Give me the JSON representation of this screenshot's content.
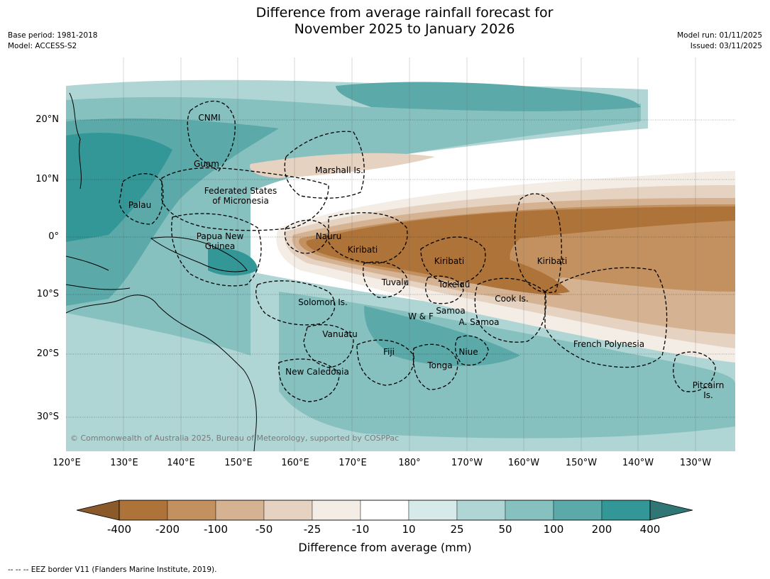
{
  "title": {
    "line1": "Difference from average rainfall forecast for",
    "line2": "November 2025 to January 2026"
  },
  "meta_left": {
    "base_period": "Base period: 1981-2018",
    "model": "Model: ACCESS-S2"
  },
  "meta_right": {
    "model_run": "Model run: 01/11/2025",
    "issued": "Issued: 03/11/2025"
  },
  "axes": {
    "lat_labels": [
      "20°N",
      "10°N",
      "0°",
      "10°S",
      "20°S",
      "30°S"
    ],
    "lon_labels": [
      "120°E",
      "130°E",
      "140°E",
      "150°E",
      "160°E",
      "170°E",
      "180°",
      "170°W",
      "160°W",
      "150°W",
      "140°W",
      "130°W"
    ]
  },
  "regions": {
    "cnmi": "CNMI",
    "guam": "Guam",
    "marshall": "Marshall Is.",
    "fsm1": "Federated States",
    "fsm2": "of Micronesia",
    "palau": "Palau",
    "png1": "Papua New",
    "png2": "Guinea",
    "nauru": "Nauru",
    "kiribati_w": "Kiribati",
    "kiribati_c": "Kiribati",
    "kiribati_e": "Kiribati",
    "tuvalu": "Tuvalu",
    "tokelau": "Tokelau",
    "cook": "Cook Is.",
    "solomon": "Solomon Is.",
    "samoa": "Samoa",
    "wf": "W & F",
    "asamoa": "A. Samoa",
    "vanuatu": "Vanuatu",
    "fiji": "Fiji",
    "niue": "Niue",
    "tonga": "Tonga",
    "newcal": "New Caledonia",
    "frpoly": "French Polynesia",
    "pitcairn1": "Pitcairn",
    "pitcairn2": "Is."
  },
  "copyright": "© Commonwealth of Australia 2025, Bureau of Meteorology, supported by COSPPac",
  "colorbar": {
    "ticks": [
      "-400",
      "-200",
      "-100",
      "-50",
      "-25",
      "-10",
      "10",
      "25",
      "50",
      "100",
      "200",
      "400"
    ],
    "colors": [
      "#ad7339",
      "#c2915f",
      "#d5b291",
      "#e5d2c0",
      "#f3ede6",
      "#ffffff",
      "#d6eae9",
      "#afd6d5",
      "#86c1c0",
      "#5ba9a9",
      "#349797"
    ],
    "under_color": "#8b5a2b",
    "over_color": "#2f7675",
    "title": "Difference from average (mm)"
  },
  "footnote": "--  --  -- EEZ border V11 (Flanders Marine Institute, 2019)."
}
